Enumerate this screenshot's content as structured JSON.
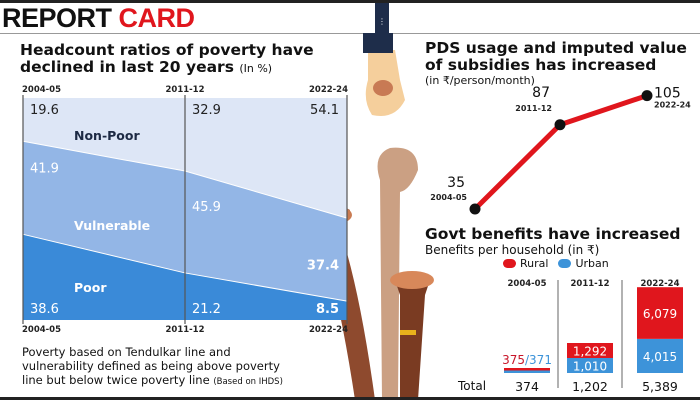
{
  "header": {
    "title_part1": "REPORT",
    "title_part2": "CARD",
    "menu_icon": "vertical-dots-icon"
  },
  "colors": {
    "non_poor": "#dde6f6",
    "vulnerable": "#93b6e6",
    "poor": "#3a8ad8",
    "line": "#e0161d",
    "rural": "#e0161d",
    "urban": "#3d93d9"
  },
  "chart_data": [
    {
      "type": "area",
      "title": "Headcount ratios of poverty have declined in last 20 years",
      "unit": "(In %)",
      "categories": [
        "2004-05",
        "2011-12",
        "2022-24"
      ],
      "stacked": true,
      "ylim": [
        0,
        100
      ],
      "series": [
        {
          "name": "Poor",
          "values": [
            38.6,
            21.2,
            8.5
          ]
        },
        {
          "name": "Vulnerable",
          "values": [
            41.9,
            45.9,
            37.4
          ]
        },
        {
          "name": "Non-Poor",
          "values": [
            19.6,
            32.9,
            54.1
          ]
        }
      ],
      "note": "Poverty based on Tendulkar line and vulnerability defined as being above poverty line but below twice poverty line",
      "source": "(Based on IHDS)"
    },
    {
      "type": "line",
      "title": "PDS usage and imputed value of subsidies has increased",
      "unit": "(in ₹/person/month)",
      "categories": [
        "2004-05",
        "2011-12",
        "2022-24"
      ],
      "values": [
        35,
        87,
        105
      ]
    },
    {
      "type": "bar",
      "title": "Govt benefits have increased",
      "subtitle": "Benefits per household (in ₹)",
      "legend": [
        "Rural",
        "Urban"
      ],
      "categories": [
        "2004-05",
        "2011-12",
        "2022-24"
      ],
      "series": [
        {
          "name": "Rural",
          "values": [
            375,
            1292,
            6079
          ],
          "labels": [
            "375",
            "1,292",
            "6,079"
          ]
        },
        {
          "name": "Urban",
          "values": [
            371,
            1010,
            4015
          ],
          "labels": [
            "371",
            "1,010",
            "4,015"
          ]
        }
      ],
      "total_label": "Total",
      "totals": [
        "374",
        "1,202",
        "5,389"
      ]
    }
  ]
}
